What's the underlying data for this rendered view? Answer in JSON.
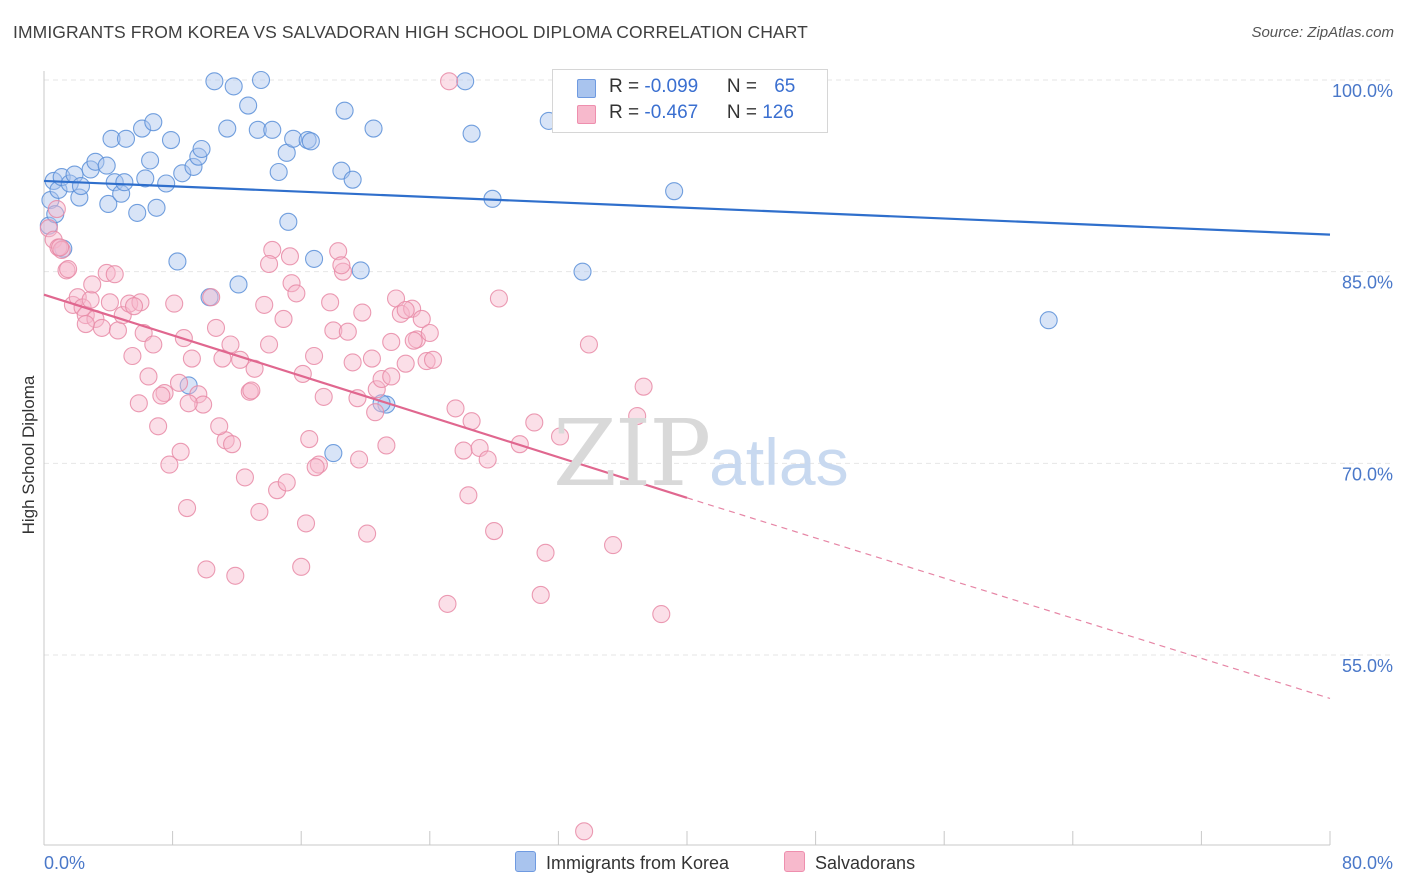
{
  "header": {
    "title": "IMMIGRANTS FROM KOREA VS SALVADORAN HIGH SCHOOL DIPLOMA CORRELATION CHART",
    "source": "Source: ZipAtlas.com"
  },
  "watermark": {
    "zip": "ZIP",
    "atlas": "atlas"
  },
  "legend": {
    "rows": [
      {
        "r_label": "R = ",
        "r_value": "-0.099",
        "n_label": "N = ",
        "n_value": "65",
        "color": "#a9c4ee"
      },
      {
        "r_label": "R = ",
        "r_value": "-0.467",
        "n_label": "N = ",
        "n_value": "126",
        "color": "#f7b9cc"
      }
    ]
  },
  "bottom_legend": {
    "items": [
      {
        "label": "Immigrants from Korea",
        "color": "#a9c4ee"
      },
      {
        "label": "Salvadorans",
        "color": "#f7b9cc"
      }
    ]
  },
  "chart_data": {
    "type": "scatter",
    "title": "IMMIGRANTS FROM KOREA VS SALVADORAN HIGH SCHOOL DIPLOMA CORRELATION CHART",
    "xlabel": "",
    "ylabel": "High School Diploma",
    "xlim": [
      0,
      80
    ],
    "ylim": [
      40,
      101.5
    ],
    "x_ticks": [
      "0.0%",
      "80.0%"
    ],
    "y_ticks": [
      {
        "value": 100,
        "label": "100.0%"
      },
      {
        "value": 85,
        "label": "85.0%"
      },
      {
        "value": 70,
        "label": "70.0%"
      },
      {
        "value": 55,
        "label": "55.0%"
      }
    ],
    "grid": true,
    "legend_position": "top-center",
    "series": [
      {
        "name": "Immigrants from Korea",
        "color": "#a9c4ee",
        "edge": "#5b8fd8",
        "line_color": "#2f6fcc",
        "trend": {
          "x": [
            0,
            80
          ],
          "y": [
            92.1,
            87.9
          ]
        },
        "points": [
          [
            0.3,
            88.6
          ],
          [
            0.4,
            90.6
          ],
          [
            0.6,
            92.1
          ],
          [
            0.7,
            89.5
          ],
          [
            0.9,
            91.4
          ],
          [
            1.1,
            92.4
          ],
          [
            1.2,
            86.8
          ],
          [
            1.6,
            91.9
          ],
          [
            1.9,
            92.6
          ],
          [
            2.2,
            90.8
          ],
          [
            2.3,
            91.7
          ],
          [
            2.9,
            93.0
          ],
          [
            3.2,
            93.6
          ],
          [
            3.9,
            93.3
          ],
          [
            4.0,
            90.3
          ],
          [
            4.2,
            95.4
          ],
          [
            4.4,
            92.0
          ],
          [
            4.8,
            91.1
          ],
          [
            5.1,
            95.4
          ],
          [
            5.8,
            89.6
          ],
          [
            6.1,
            96.2
          ],
          [
            6.3,
            92.3
          ],
          [
            6.6,
            93.7
          ],
          [
            6.8,
            96.7
          ],
          [
            7.6,
            91.9
          ],
          [
            7.9,
            95.3
          ],
          [
            8.3,
            85.8
          ],
          [
            8.6,
            92.7
          ],
          [
            9.3,
            93.2
          ],
          [
            9.6,
            94.0
          ],
          [
            9.8,
            94.6
          ],
          [
            10.3,
            83.0
          ],
          [
            10.6,
            99.9
          ],
          [
            11.4,
            96.2
          ],
          [
            11.8,
            99.5
          ],
          [
            12.1,
            84.0
          ],
          [
            12.7,
            98.0
          ],
          [
            13.3,
            96.1
          ],
          [
            13.5,
            100.0
          ],
          [
            14.2,
            96.1
          ],
          [
            14.6,
            92.8
          ],
          [
            15.1,
            94.3
          ],
          [
            15.2,
            88.9
          ],
          [
            15.5,
            95.4
          ],
          [
            16.4,
            95.3
          ],
          [
            16.6,
            95.2
          ],
          [
            16.8,
            86.0
          ],
          [
            18.5,
            92.9
          ],
          [
            18.7,
            97.6
          ],
          [
            19.2,
            92.2
          ],
          [
            19.7,
            85.1
          ],
          [
            20.5,
            96.2
          ],
          [
            21.3,
            74.6
          ],
          [
            26.2,
            99.9
          ],
          [
            26.6,
            95.8
          ],
          [
            27.9,
            90.7
          ],
          [
            31.4,
            96.8
          ],
          [
            33.5,
            85.0
          ],
          [
            39.2,
            91.3
          ],
          [
            62.5,
            81.2
          ],
          [
            9.0,
            76.1
          ],
          [
            18.0,
            70.8
          ],
          [
            21.0,
            74.7
          ],
          [
            5.0,
            92.0
          ],
          [
            7.0,
            90.0
          ]
        ]
      },
      {
        "name": "Salvadorans",
        "color": "#f7b9cc",
        "edge": "#e889a6",
        "line_color": "#e0678f",
        "trend": {
          "x": [
            0,
            40
          ],
          "y": [
            83.2,
            67.3
          ]
        },
        "trend_dashed": {
          "x": [
            40,
            80
          ],
          "y": [
            67.3,
            51.6
          ]
        },
        "points": [
          [
            0.3,
            88.4
          ],
          [
            0.6,
            87.5
          ],
          [
            0.9,
            86.9
          ],
          [
            1.1,
            86.7
          ],
          [
            1.4,
            85.1
          ],
          [
            1.8,
            82.4
          ],
          [
            2.1,
            83.0
          ],
          [
            2.4,
            82.2
          ],
          [
            2.6,
            81.6
          ],
          [
            2.9,
            82.8
          ],
          [
            3.2,
            81.3
          ],
          [
            3.6,
            80.6
          ],
          [
            3.9,
            84.9
          ],
          [
            4.1,
            82.6
          ],
          [
            4.6,
            80.4
          ],
          [
            4.9,
            81.6
          ],
          [
            5.3,
            82.5
          ],
          [
            5.5,
            78.4
          ],
          [
            5.9,
            74.7
          ],
          [
            6.2,
            80.2
          ],
          [
            6.5,
            76.8
          ],
          [
            6.8,
            79.3
          ],
          [
            7.1,
            72.9
          ],
          [
            7.5,
            75.5
          ],
          [
            7.8,
            69.9
          ],
          [
            8.1,
            82.5
          ],
          [
            8.4,
            76.3
          ],
          [
            8.7,
            79.8
          ],
          [
            8.9,
            66.5
          ],
          [
            9.2,
            78.2
          ],
          [
            9.6,
            75.4
          ],
          [
            9.9,
            74.6
          ],
          [
            10.1,
            61.7
          ],
          [
            10.4,
            83.0
          ],
          [
            10.7,
            80.6
          ],
          [
            11.1,
            78.2
          ],
          [
            11.3,
            71.8
          ],
          [
            11.6,
            79.3
          ],
          [
            11.9,
            61.2
          ],
          [
            12.2,
            78.1
          ],
          [
            12.5,
            68.9
          ],
          [
            12.8,
            75.6
          ],
          [
            13.1,
            77.4
          ],
          [
            13.4,
            66.2
          ],
          [
            13.7,
            82.4
          ],
          [
            14.0,
            79.3
          ],
          [
            14.2,
            86.7
          ],
          [
            14.5,
            67.9
          ],
          [
            14.9,
            81.3
          ],
          [
            15.1,
            68.5
          ],
          [
            15.4,
            84.1
          ],
          [
            15.7,
            83.3
          ],
          [
            16.0,
            61.9
          ],
          [
            16.3,
            65.3
          ],
          [
            16.5,
            71.9
          ],
          [
            16.8,
            78.4
          ],
          [
            17.1,
            69.9
          ],
          [
            17.4,
            75.2
          ],
          [
            17.8,
            82.6
          ],
          [
            18.0,
            80.4
          ],
          [
            18.3,
            86.6
          ],
          [
            18.6,
            85.0
          ],
          [
            18.9,
            80.3
          ],
          [
            19.2,
            77.9
          ],
          [
            19.5,
            75.1
          ],
          [
            19.8,
            81.8
          ],
          [
            20.1,
            64.5
          ],
          [
            20.4,
            78.2
          ],
          [
            20.7,
            75.8
          ],
          [
            21.0,
            76.6
          ],
          [
            21.3,
            71.4
          ],
          [
            21.6,
            79.5
          ],
          [
            21.9,
            82.9
          ],
          [
            22.2,
            81.7
          ],
          [
            22.5,
            77.8
          ],
          [
            22.9,
            82.1
          ],
          [
            23.2,
            79.7
          ],
          [
            23.5,
            81.3
          ],
          [
            23.8,
            78.0
          ],
          [
            24.2,
            78.1
          ],
          [
            25.1,
            59.0
          ],
          [
            25.6,
            74.3
          ],
          [
            26.1,
            71.0
          ],
          [
            26.4,
            67.5
          ],
          [
            27.1,
            71.2
          ],
          [
            27.6,
            70.3
          ],
          [
            28.0,
            64.7
          ],
          [
            28.3,
            82.9
          ],
          [
            29.6,
            71.5
          ],
          [
            30.5,
            73.2
          ],
          [
            30.9,
            59.7
          ],
          [
            31.2,
            63.0
          ],
          [
            32.1,
            72.1
          ],
          [
            33.9,
            79.3
          ],
          [
            35.4,
            63.6
          ],
          [
            36.9,
            73.7
          ],
          [
            37.3,
            76.0
          ],
          [
            38.4,
            58.2
          ],
          [
            25.2,
            99.9
          ],
          [
            33.6,
            41.2
          ],
          [
            0.8,
            89.9
          ],
          [
            1.5,
            85.2
          ],
          [
            3.0,
            84.0
          ],
          [
            4.4,
            84.8
          ],
          [
            6.0,
            82.6
          ],
          [
            7.3,
            75.3
          ],
          [
            9.0,
            74.7
          ],
          [
            10.9,
            72.9
          ],
          [
            12.9,
            75.7
          ],
          [
            14.0,
            85.6
          ],
          [
            15.3,
            86.2
          ],
          [
            16.9,
            69.7
          ],
          [
            18.5,
            85.5
          ],
          [
            19.6,
            70.3
          ],
          [
            20.6,
            74.0
          ],
          [
            21.6,
            76.8
          ],
          [
            22.5,
            82.0
          ],
          [
            23.0,
            79.6
          ],
          [
            24.0,
            80.2
          ],
          [
            26.6,
            73.3
          ],
          [
            1.0,
            86.9
          ],
          [
            2.6,
            80.9
          ],
          [
            5.6,
            82.3
          ],
          [
            8.5,
            70.9
          ],
          [
            11.7,
            71.5
          ],
          [
            16.1,
            77.0
          ]
        ]
      }
    ]
  }
}
